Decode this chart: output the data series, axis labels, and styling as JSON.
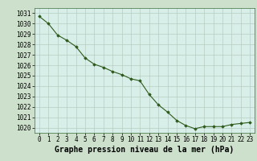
{
  "x": [
    0,
    1,
    2,
    3,
    4,
    5,
    6,
    7,
    8,
    9,
    10,
    11,
    12,
    13,
    14,
    15,
    16,
    17,
    18,
    19,
    20,
    21,
    22,
    23
  ],
  "y": [
    1030.7,
    1030.0,
    1028.9,
    1028.4,
    1027.8,
    1026.7,
    1026.1,
    1025.8,
    1025.4,
    1025.1,
    1024.7,
    1024.5,
    1023.2,
    1022.2,
    1021.5,
    1020.7,
    1020.2,
    1019.9,
    1020.1,
    1020.1,
    1020.1,
    1020.3,
    1020.4,
    1020.5
  ],
  "ylim": [
    1019.5,
    1031.5
  ],
  "yticks": [
    1020,
    1021,
    1022,
    1023,
    1024,
    1025,
    1026,
    1027,
    1028,
    1029,
    1030,
    1031
  ],
  "xlim": [
    -0.5,
    23.5
  ],
  "xticks": [
    0,
    1,
    2,
    3,
    4,
    5,
    6,
    7,
    8,
    9,
    10,
    11,
    12,
    13,
    14,
    15,
    16,
    17,
    18,
    19,
    20,
    21,
    22,
    23
  ],
  "xlabel": "Graphe pression niveau de la mer (hPa)",
  "line_color": "#2d5a1b",
  "marker_color": "#2d5a1b",
  "bg_plot": "#d8eee8",
  "bg_fig": "#cce0cc",
  "grid_color": "#b8ccc0",
  "tick_label_fontsize": 5.5,
  "xlabel_fontsize": 7.0,
  "marker": "D",
  "marker_size": 1.8,
  "line_width": 0.8
}
